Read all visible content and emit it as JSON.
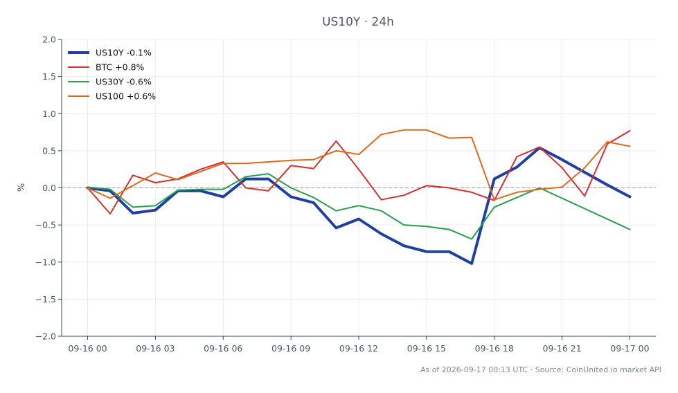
{
  "chart_data": {
    "type": "line",
    "title": "US10Y · 24h",
    "xlabel": "",
    "ylabel": "%",
    "x_ticks": [
      "09-16 00",
      "09-16 03",
      "09-16 06",
      "09-16 09",
      "09-16 12",
      "09-16 15",
      "09-16 18",
      "09-16 21",
      "09-17 00"
    ],
    "x_hours": [
      0,
      1,
      2,
      3,
      4,
      5,
      6,
      7,
      8,
      9,
      10,
      11,
      12,
      13,
      14,
      15,
      16,
      17,
      18,
      19,
      20,
      21,
      22,
      23,
      24
    ],
    "ylim": [
      -2.0,
      2.0
    ],
    "xlim_hours": [
      -1.15,
      25.15
    ],
    "y_ticks": [
      2.0,
      1.5,
      1.0,
      0.5,
      0.0,
      -0.5,
      -1.0,
      -1.5,
      -2.0
    ],
    "y_tick_labels": [
      "2.0",
      "1.5",
      "1.0",
      "0.5",
      "0.0",
      "−0.5",
      "−1.0",
      "−1.5",
      "−2.0"
    ],
    "zero_line": true,
    "grid": true,
    "legend_position": "top-left",
    "series": [
      {
        "name": "US10Y -0.1%",
        "color": "#1f3fa3",
        "width": 4,
        "values": [
          0.0,
          -0.04,
          -0.34,
          -0.3,
          -0.04,
          -0.04,
          -0.12,
          0.12,
          0.12,
          -0.12,
          -0.2,
          -0.54,
          -0.42,
          -0.62,
          -0.78,
          -0.86,
          -0.86,
          -1.02,
          0.12,
          0.28,
          0.54,
          0.38,
          0.21,
          0.04,
          -0.12
        ]
      },
      {
        "name": "BTC +0.8%",
        "color": "#d62f2f",
        "width": 2,
        "values": [
          0.0,
          -0.35,
          0.17,
          0.07,
          0.12,
          0.25,
          0.35,
          0.0,
          -0.04,
          0.3,
          0.26,
          0.63,
          0.25,
          -0.16,
          -0.1,
          0.03,
          0.0,
          -0.06,
          -0.17,
          0.42,
          0.55,
          0.27,
          -0.11,
          0.59,
          0.77
        ]
      },
      {
        "name": "US30Y -0.6%",
        "color": "#22a04b",
        "width": 2,
        "values": [
          0.01,
          -0.02,
          -0.26,
          -0.24,
          -0.03,
          -0.02,
          -0.02,
          0.15,
          0.19,
          0.0,
          -0.13,
          -0.31,
          -0.24,
          -0.31,
          -0.5,
          -0.52,
          -0.56,
          -0.69,
          -0.26,
          -0.13,
          0.0,
          null,
          null,
          null,
          -0.56
        ]
      },
      {
        "name": "US100 +0.6%",
        "color": "#e0681a",
        "width": 2,
        "values": [
          0.0,
          -0.14,
          0.03,
          0.2,
          0.11,
          0.22,
          0.33,
          0.33,
          0.35,
          0.37,
          0.38,
          0.5,
          0.45,
          0.72,
          0.78,
          0.78,
          0.67,
          0.68,
          -0.16,
          -0.06,
          -0.02,
          0.01,
          0.27,
          0.62,
          0.56
        ]
      }
    ]
  },
  "footer": {
    "source_text": "As of 2026-09-17 00:13 UTC · Source: CoinUnited.io market API"
  }
}
